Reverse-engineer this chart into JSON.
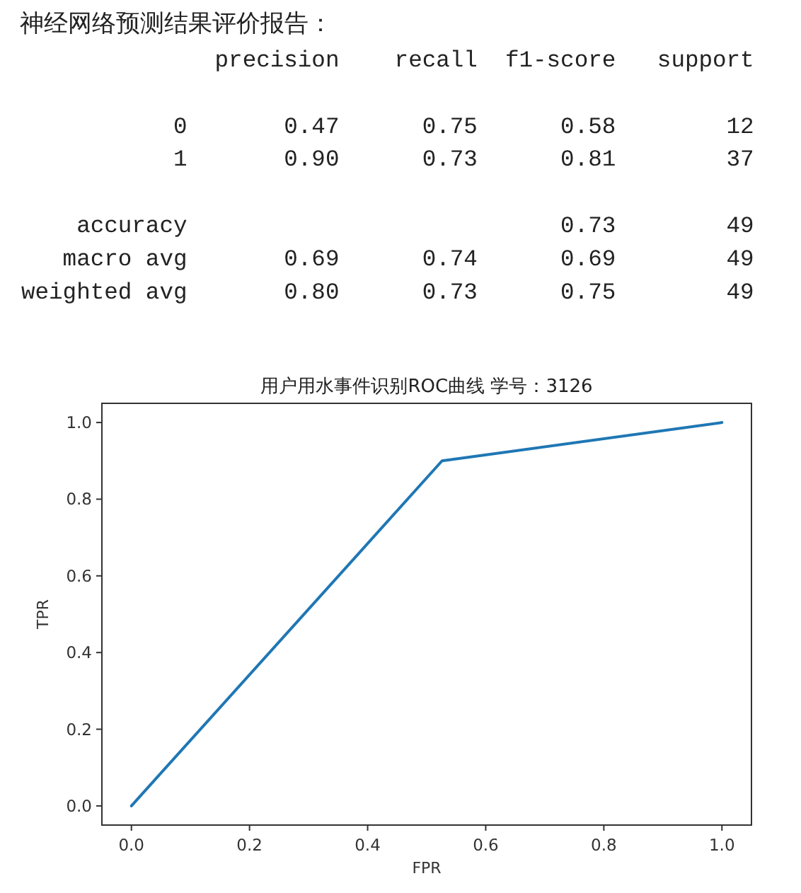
{
  "chart_data": [
    {
      "type": "other",
      "title": "神经网络预测结果评价报告：",
      "annotations": [
        "              precision    recall  f1-score   support",
        "           0       0.47      0.75      0.58        12",
        "           1       0.90      0.73      0.81        37",
        "    accuracy                           0.73        49",
        "   macro avg       0.69      0.74      0.69        49",
        "weighted avg       0.80      0.73      0.75        49"
      ]
    },
    {
      "type": "line",
      "title": "用户用水事件识别ROC曲线 学号：3126",
      "xlabel": "FPR",
      "ylabel": "TPR",
      "x": [
        0,
        0.526,
        1
      ],
      "series": [
        {
          "color": "#1f77b4",
          "values": [
            0,
            0.9,
            1
          ]
        }
      ],
      "xlim": [
        -0.05,
        1.05
      ],
      "ylim": [
        -0.05,
        1.05
      ],
      "xticks": [
        {
          "value": 0,
          "label": "0.0"
        },
        0.2,
        0.4,
        0.6,
        0.8,
        {
          "value": 1,
          "label": "1.0"
        }
      ],
      "yticks": [
        {
          "value": 0,
          "label": "0.0"
        },
        0.2,
        0.4,
        0.6,
        0.8,
        {
          "value": 1,
          "label": "1.0"
        }
      ],
      "grid": false
    }
  ]
}
